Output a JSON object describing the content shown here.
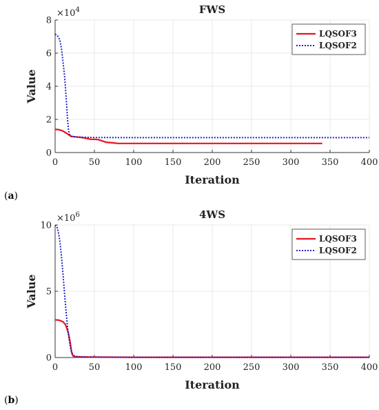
{
  "chart_data": [
    {
      "type": "line",
      "panel_label": "(a)",
      "panel_label_letter": "a",
      "title": "FWS",
      "xlabel": "Iteration",
      "ylabel": "Value",
      "y_multiplier": "×10",
      "y_exponent": "4",
      "xlim": [
        0,
        400
      ],
      "ylim": [
        0,
        8
      ],
      "xticks": [
        0,
        50,
        100,
        150,
        200,
        250,
        300,
        350,
        400
      ],
      "yticks": [
        0,
        2,
        4,
        6,
        8
      ],
      "grid": true,
      "legend_position": "top-right",
      "series": [
        {
          "name": "LQSOF3",
          "color": "#e8141b",
          "style": "solid",
          "x": [
            0,
            5,
            10,
            15,
            18,
            20,
            25,
            30,
            35,
            40,
            45,
            50,
            55,
            60,
            65,
            70,
            75,
            80,
            90,
            100,
            150,
            200,
            250,
            300,
            340
          ],
          "y": [
            1.4,
            1.38,
            1.3,
            1.15,
            1.05,
            0.98,
            0.95,
            0.93,
            0.9,
            0.85,
            0.8,
            0.8,
            0.78,
            0.7,
            0.62,
            0.6,
            0.58,
            0.55,
            0.55,
            0.55,
            0.55,
            0.55,
            0.55,
            0.55,
            0.55
          ]
        },
        {
          "name": "LQSOF2",
          "color": "#1f1fc8",
          "style": "dotted",
          "x": [
            0,
            3,
            6,
            8,
            10,
            12,
            13,
            14,
            15,
            16,
            17,
            18,
            19,
            20,
            22,
            25,
            30,
            40,
            50,
            100,
            200,
            300,
            400
          ],
          "y": [
            7.15,
            7.05,
            6.8,
            6.3,
            5.5,
            4.6,
            4.0,
            3.3,
            2.6,
            1.9,
            1.4,
            1.15,
            1.05,
            1.0,
            0.97,
            0.95,
            0.93,
            0.92,
            0.91,
            0.9,
            0.9,
            0.9,
            0.9
          ]
        }
      ]
    },
    {
      "type": "line",
      "panel_label": "(b)",
      "panel_label_letter": "b",
      "title": "4WS",
      "xlabel": "Iteration",
      "ylabel": "Value",
      "y_multiplier": "×10",
      "y_exponent": "6",
      "xlim": [
        0,
        400
      ],
      "ylim": [
        0,
        10
      ],
      "xticks": [
        0,
        50,
        100,
        150,
        200,
        250,
        300,
        350,
        400
      ],
      "yticks": [
        0,
        5,
        10
      ],
      "grid": true,
      "legend_position": "top-right",
      "series": [
        {
          "name": "LQSOF3",
          "color": "#e8141b",
          "style": "solid",
          "x": [
            0,
            5,
            10,
            13,
            15,
            17,
            19,
            20,
            21,
            22,
            23,
            24,
            25,
            30,
            40,
            50,
            100,
            200,
            300,
            400
          ],
          "y": [
            2.85,
            2.82,
            2.7,
            2.5,
            2.2,
            1.8,
            1.2,
            0.8,
            0.4,
            0.2,
            0.12,
            0.08,
            0.06,
            0.05,
            0.04,
            0.03,
            0.02,
            0.02,
            0.02,
            0.02
          ]
        },
        {
          "name": "LQSOF2",
          "color": "#1f1fc8",
          "style": "dotted",
          "x": [
            0,
            2,
            4,
            6,
            8,
            10,
            12,
            14,
            16,
            18,
            20,
            22,
            24,
            26,
            30,
            40,
            50,
            100,
            200,
            300,
            400
          ],
          "y": [
            10.0,
            9.9,
            9.5,
            8.8,
            7.7,
            6.3,
            4.8,
            3.4,
            2.2,
            1.3,
            0.6,
            0.3,
            0.15,
            0.1,
            0.06,
            0.04,
            0.03,
            0.02,
            0.02,
            0.02,
            0.02
          ]
        }
      ]
    }
  ]
}
